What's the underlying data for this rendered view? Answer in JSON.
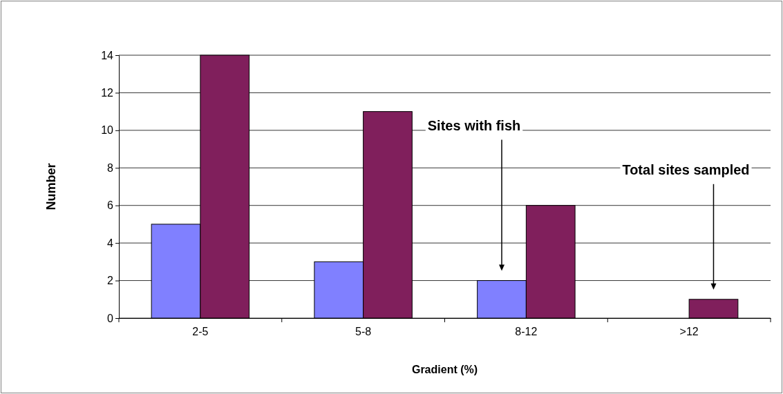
{
  "chart_data": {
    "type": "bar",
    "xlabel": "Gradient (%)",
    "ylabel": "Number",
    "categories": [
      "2-5",
      "5-8",
      "8-12",
      ">12"
    ],
    "series": [
      {
        "color": "#8080ff",
        "values": [
          5,
          3,
          2,
          0
        ]
      },
      {
        "color": "#801f5c",
        "values": [
          14,
          11,
          6,
          1
        ]
      }
    ],
    "annotations": [
      "Sites with fish",
      "Total sites sampled"
    ],
    "ylim": [
      0,
      14
    ],
    "yticks": [
      0,
      2,
      4,
      6,
      8,
      10,
      12,
      14
    ],
    "grid": "y"
  }
}
